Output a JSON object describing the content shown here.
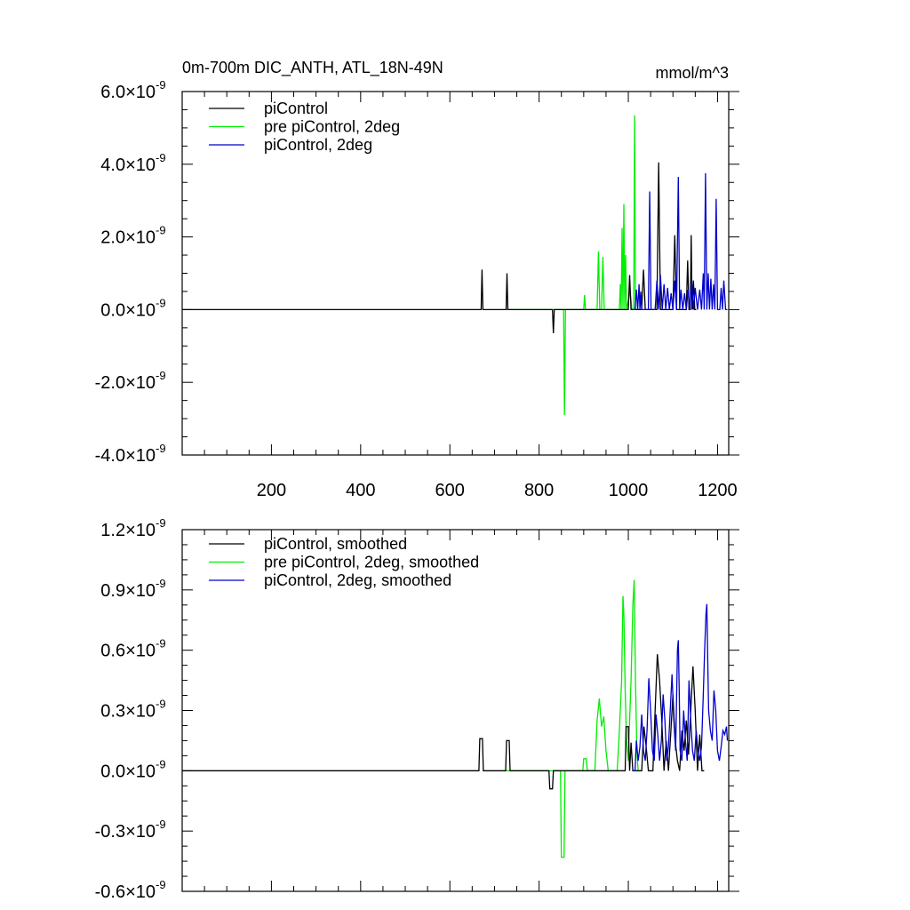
{
  "chart_data": [
    {
      "type": "line",
      "title": "0m-700m DIC_ANTH, ATL_18N-49N",
      "units_label": "mmol/m^3",
      "exponent": "-9",
      "xlim": [
        0,
        1225
      ],
      "ylim": [
        -4.0,
        6.0
      ],
      "x_ticks": [
        200,
        400,
        600,
        800,
        1000,
        1200
      ],
      "x_tick_labels": [
        "200",
        "400",
        "600",
        "800",
        "1000",
        "1200"
      ],
      "y_ticks": [
        -4.0,
        -2.0,
        0.0,
        2.0,
        4.0,
        6.0
      ],
      "y_tick_labels": [
        "-4.0×10",
        "-2.0×10",
        "0.0×10",
        "2.0×10",
        "4.0×10",
        "6.0×10"
      ],
      "legend": [
        "piControl",
        "pre piControl, 2deg",
        "piControl, 2deg"
      ],
      "series": [
        {
          "name": "piControl",
          "color": "#000000",
          "x": [
            0,
            670,
            672,
            674,
            676,
            726,
            728,
            730,
            732,
            830,
            832,
            834,
            836,
            1000,
            1003,
            1006,
            1009,
            1030,
            1034,
            1038,
            1042,
            1064,
            1068,
            1072,
            1076,
            1100,
            1104,
            1108,
            1112,
            1130,
            1133,
            1136,
            1139,
            1141,
            1143,
            1146,
            1149,
            1152
          ],
          "values": [
            0,
            0,
            1.1,
            0,
            0,
            0,
            1.0,
            0,
            0,
            0,
            -0.65,
            0,
            0,
            0,
            0.95,
            0,
            0,
            0,
            1.1,
            0,
            0,
            0,
            4.05,
            0,
            0,
            0,
            2.05,
            0,
            0,
            0,
            1.35,
            0,
            0,
            2.05,
            0,
            0.8,
            0,
            0
          ]
        },
        {
          "name": "pre piControl, 2deg",
          "color": "#00ee00",
          "x": [
            725,
            855,
            857,
            859,
            861,
            900,
            902,
            904,
            930,
            933,
            936,
            940,
            943,
            946,
            980,
            982,
            984,
            986,
            988,
            990,
            992,
            994,
            996,
            1004,
            1008,
            1012,
            1014,
            1016,
            1020
          ],
          "values": [
            0,
            0,
            -2.9,
            0,
            0,
            0,
            0.4,
            0,
            0,
            1.6,
            0,
            0,
            1.45,
            0,
            0,
            0.7,
            0,
            2.25,
            0,
            2.9,
            0,
            1.5,
            0,
            0.5,
            0,
            0,
            5.35,
            0,
            0
          ]
        },
        {
          "name": "piControl, 2deg",
          "color": "#0000cc",
          "x": [
            1010,
            1015,
            1018,
            1021,
            1024,
            1026,
            1028,
            1030,
            1045,
            1048,
            1051,
            1054,
            1060,
            1064,
            1068,
            1072,
            1076,
            1080,
            1084,
            1088,
            1092,
            1096,
            1100,
            1104,
            1108,
            1112,
            1115,
            1118,
            1122,
            1126,
            1130,
            1134,
            1138,
            1142,
            1146,
            1150,
            1155,
            1160,
            1164,
            1168,
            1170,
            1173,
            1176,
            1179,
            1182,
            1185,
            1188,
            1191,
            1194,
            1197,
            1200,
            1205,
            1208,
            1211,
            1214,
            1218,
            1222
          ],
          "values": [
            0,
            0,
            0.55,
            0,
            0.7,
            0,
            0.5,
            0,
            0,
            3.25,
            0,
            0,
            0,
            0.8,
            0,
            0.95,
            0,
            0.7,
            0,
            0.6,
            0,
            0.45,
            0,
            0.8,
            0,
            3.65,
            0,
            0.55,
            0,
            0.45,
            0,
            0.55,
            0,
            0.8,
            0,
            0.6,
            0,
            0.55,
            0,
            1.0,
            0,
            3.75,
            0,
            1.0,
            0,
            0.85,
            0,
            0.7,
            0,
            3.05,
            0,
            0,
            0.6,
            0,
            0.8,
            0,
            0
          ]
        }
      ]
    },
    {
      "type": "line",
      "title": "",
      "exponent": "-9",
      "xlim": [
        0,
        1225
      ],
      "ylim": [
        -0.6,
        1.2
      ],
      "x_ticks": [
        200,
        400,
        600,
        800,
        1000,
        1200
      ],
      "y_ticks": [
        -0.6,
        -0.3,
        0.0,
        0.3,
        0.6,
        0.9,
        1.2
      ],
      "y_tick_labels": [
        "-0.6×10",
        "-0.3×10",
        "0.0×10",
        "0.3×10",
        "0.6×10",
        "0.9×10",
        "1.2×10"
      ],
      "legend": [
        "piControl, smoothed",
        "pre piControl, 2deg, smoothed",
        "piControl, 2deg, smoothed"
      ],
      "series": [
        {
          "name": "piControl, smoothed",
          "color": "#000000",
          "x": [
            0,
            665,
            667,
            673,
            675,
            725,
            727,
            733,
            735,
            822,
            824,
            830,
            832,
            993,
            995,
            1000,
            1003,
            1006,
            1010,
            1030,
            1035,
            1040,
            1045,
            1055,
            1060,
            1065,
            1070,
            1075,
            1080,
            1085,
            1090,
            1095,
            1100,
            1105,
            1110,
            1115,
            1120,
            1125,
            1130,
            1135,
            1140,
            1145,
            1150,
            1155,
            1160,
            1165,
            1170
          ],
          "values": [
            0,
            0,
            0.16,
            0.16,
            0,
            0,
            0.15,
            0.15,
            0,
            0,
            -0.09,
            -0.09,
            0,
            0,
            0.22,
            0.22,
            0,
            0.14,
            0,
            0,
            0.22,
            0.12,
            0,
            0,
            0.3,
            0.58,
            0.45,
            0.25,
            0,
            0.15,
            0,
            0.18,
            0.38,
            0.15,
            0.05,
            0,
            0.2,
            0.1,
            0.25,
            0.08,
            0.3,
            0.52,
            0.3,
            0,
            0.18,
            0,
            0
          ]
        },
        {
          "name": "pre piControl, 2deg, smoothed",
          "color": "#00ee00",
          "x": [
            725,
            848,
            850,
            856,
            858,
            898,
            900,
            906,
            908,
            925,
            930,
            935,
            940,
            945,
            950,
            955,
            975,
            980,
            985,
            988,
            990,
            993,
            996,
            1000,
            1003,
            1006,
            1010,
            1013,
            1016,
            1019,
            1022
          ],
          "values": [
            0,
            0,
            -0.43,
            -0.43,
            0,
            0,
            0.06,
            0.06,
            0,
            0,
            0.25,
            0.36,
            0.22,
            0.27,
            0.1,
            0,
            0,
            0.2,
            0.45,
            0.87,
            0.78,
            0.4,
            0.15,
            0.05,
            0.25,
            0.45,
            0.82,
            0.95,
            0.45,
            0.1,
            0
          ]
        },
        {
          "name": "piControl, 2deg, smoothed",
          "color": "#0000cc",
          "x": [
            1010,
            1015,
            1018,
            1022,
            1026,
            1030,
            1034,
            1038,
            1042,
            1046,
            1050,
            1054,
            1058,
            1062,
            1066,
            1070,
            1074,
            1078,
            1082,
            1086,
            1090,
            1094,
            1098,
            1102,
            1106,
            1110,
            1112,
            1114,
            1116,
            1120,
            1124,
            1128,
            1132,
            1136,
            1140,
            1144,
            1148,
            1152,
            1156,
            1160,
            1164,
            1168,
            1171,
            1174,
            1176,
            1178,
            1180,
            1184,
            1188,
            1192,
            1196,
            1200,
            1204,
            1208,
            1212,
            1216,
            1220,
            1222
          ],
          "values": [
            0,
            0,
            0.15,
            0.05,
            0.12,
            0.28,
            0.1,
            0.05,
            0.2,
            0.46,
            0.3,
            0.1,
            0.05,
            0.28,
            0.18,
            0.05,
            0.15,
            0.38,
            0.25,
            0.05,
            0.12,
            0.3,
            0.48,
            0.25,
            0.1,
            0.6,
            0.65,
            0.4,
            0.1,
            0.05,
            0.3,
            0.15,
            0.05,
            0.45,
            0.25,
            0.1,
            0.05,
            0.2,
            0.1,
            0.05,
            0.12,
            0.38,
            0.6,
            0.78,
            0.83,
            0.55,
            0.3,
            0.2,
            0.15,
            0.4,
            0.3,
            0.1,
            0.05,
            0.12,
            0.2,
            0.18,
            0.22,
            0.15
          ]
        }
      ]
    }
  ]
}
